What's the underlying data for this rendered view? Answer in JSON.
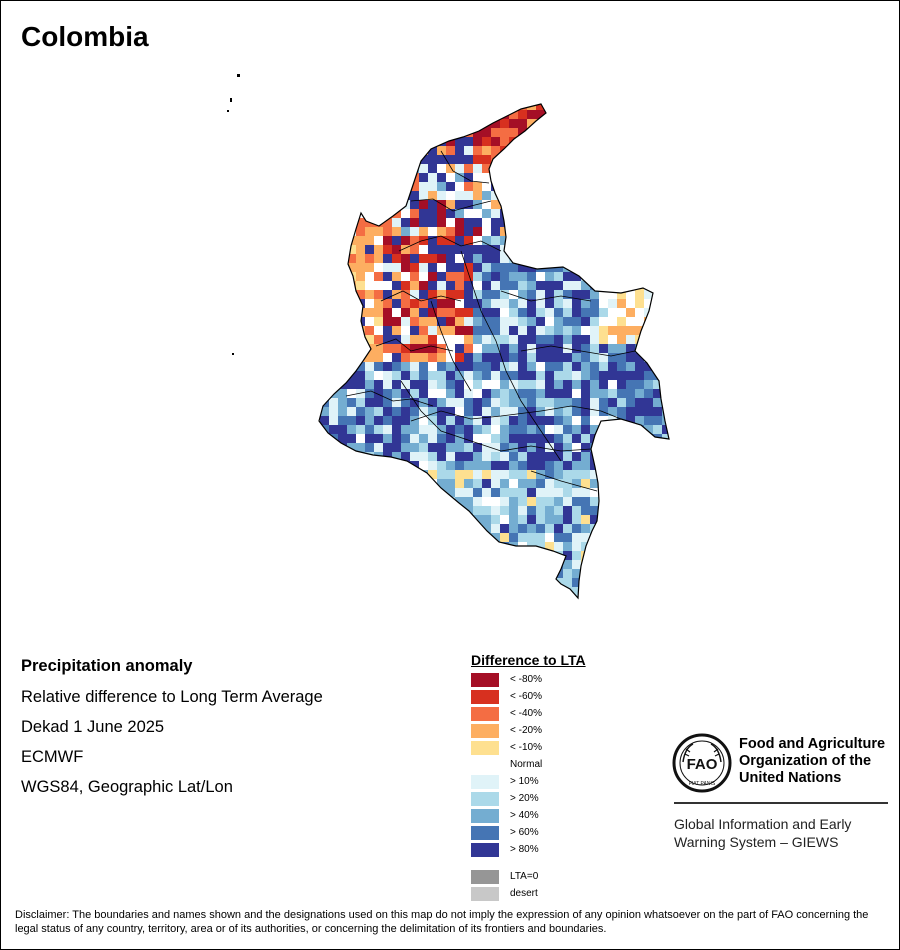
{
  "title": "Colombia",
  "info": {
    "heading": "Precipitation anomaly",
    "line1": "Relative difference to Long Term Average",
    "line2": "Dekad 1 June 2025",
    "line3": "ECMWF",
    "line4": "WGS84, Geographic Lat/Lon"
  },
  "legend": {
    "title": "Difference to LTA",
    "items": [
      {
        "label": "< -80%",
        "color": "#a50f26"
      },
      {
        "label": "< -60%",
        "color": "#d7301f"
      },
      {
        "label": "< -40%",
        "color": "#f46d43"
      },
      {
        "label": "< -20%",
        "color": "#fdae61"
      },
      {
        "label": "< -10%",
        "color": "#fee090"
      },
      {
        "label": "Normal",
        "color": "#ffffff"
      },
      {
        "label": "> 10%",
        "color": "#e0f3f8"
      },
      {
        "label": "> 20%",
        "color": "#abd9e9"
      },
      {
        "label": "> 40%",
        "color": "#74add1"
      },
      {
        "label": "> 60%",
        "color": "#4575b4"
      },
      {
        "label": "> 80%",
        "color": "#313695"
      },
      {
        "label": "LTA=0",
        "color": "#969696"
      },
      {
        "label": "desert",
        "color": "#c8c8c8"
      }
    ]
  },
  "fao": {
    "logo_text": "FAO",
    "logo_motto": "FIAT PANIS",
    "name_line1": "Food and Agriculture",
    "name_line2": "Organization of the",
    "name_line3": "United Nations",
    "giews_line1": "Global Information and Early",
    "giews_line2": "Warning System – GIEWS"
  },
  "disclaimer": "Disclaimer: The boundaries and names shown and the designations used on this map do not imply the expression of any opinion whatsoever on the part of FAO concerning the legal status of any country, territory, area or of its authorities, or concerning the delimitation of its frontiers and boundaries."
}
